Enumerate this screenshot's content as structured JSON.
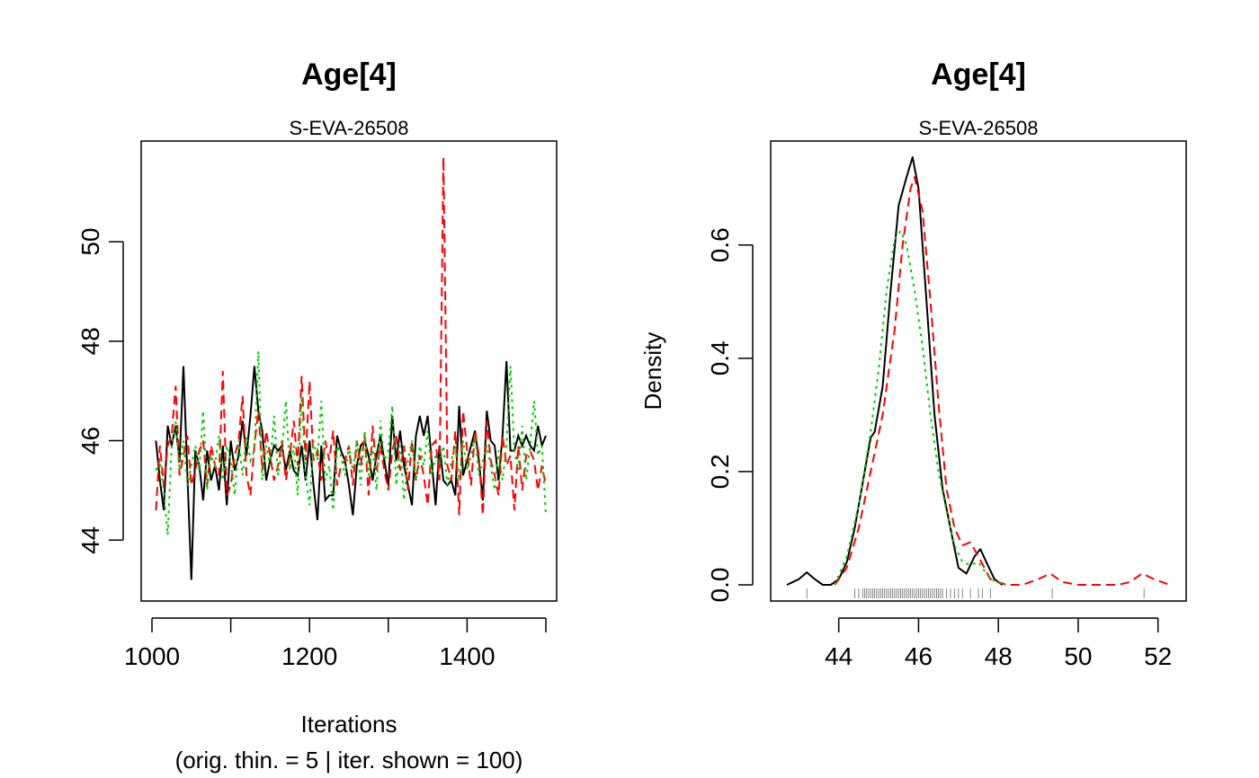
{
  "colors": {
    "chain1": "#000000",
    "chain2": "#ff0000",
    "chain3": "#00cd00",
    "rug": "#000000"
  },
  "chart_data": [
    {
      "type": "line",
      "title": "Age[4]",
      "subtitle": "S-EVA-26508",
      "xlabel": "Iterations",
      "xlabel2": "(orig. thin. = 5 | iter. shown = 100)",
      "ylabel": "",
      "xlim": [
        1000,
        1500
      ],
      "ylim": [
        43.1,
        51.7
      ],
      "xticks": [
        1000,
        1200,
        1400
      ],
      "xtick_minor": [
        1000,
        1100,
        1200,
        1300,
        1400,
        1500
      ],
      "yticks": [
        44,
        46,
        48,
        50
      ],
      "grid": false,
      "x": {
        "start": 1005,
        "step": 5,
        "count": 100
      },
      "series": [
        {
          "values": [
            46.0,
            45.2,
            44.6,
            46.3,
            45.9,
            46.3,
            45.6,
            47.5,
            45.3,
            43.2,
            45.8,
            45.5,
            44.8,
            45.8,
            45.2,
            45.5,
            45.0,
            45.9,
            44.7,
            46.0,
            45.4,
            45.7,
            46.4,
            45.7,
            46.5,
            47.5,
            46.6,
            46.2,
            45.2,
            45.6,
            45.9,
            45.8,
            45.9,
            45.4,
            45.8,
            45.4,
            45.3,
            45.9,
            45.2,
            46.0,
            45.1,
            44.4,
            45.9,
            44.8,
            44.9,
            44.9,
            46.1,
            45.8,
            45.6,
            45.1,
            44.5,
            45.5,
            45.9,
            46.0,
            45.7,
            45.2,
            45.7,
            46.1,
            45.6,
            45.1,
            46.5,
            45.6,
            46.2,
            45.5,
            45.1,
            44.7,
            46.1,
            46.5,
            46.1,
            46.5,
            45.6,
            44.7,
            45.9,
            45.2,
            45.1,
            45.2,
            44.9,
            46.7,
            45.3,
            45.6,
            45.9,
            46.2,
            45.6,
            44.8,
            46.6,
            46.0,
            45.9,
            45.2,
            46.1,
            47.6,
            45.8,
            45.8,
            46.1,
            45.9,
            46.1,
            45.9,
            45.8,
            46.3,
            45.9,
            46.1
          ]
        },
        {
          "values": [
            44.6,
            45.9,
            45.1,
            45.9,
            46.1,
            47.1,
            45.3,
            45.7,
            46.1,
            45.1,
            45.4,
            45.8,
            46.0,
            45.1,
            45.9,
            45.5,
            45.3,
            47.4,
            44.9,
            45.1,
            45.7,
            46.0,
            46.9,
            45.3,
            44.9,
            45.9,
            46.6,
            45.4,
            46.2,
            45.7,
            45.2,
            45.5,
            46.0,
            45.2,
            45.7,
            46.4,
            45.5,
            47.3,
            45.6,
            47.2,
            45.6,
            45.8,
            45.2,
            46.0,
            45.6,
            46.2,
            45.1,
            45.5,
            45.6,
            45.9,
            45.1,
            46.0,
            45.5,
            46.1,
            44.9,
            46.3,
            45.4,
            45.9,
            45.4,
            45.0,
            45.8,
            46.1,
            45.4,
            45.9,
            45.0,
            46.0,
            45.2,
            45.7,
            45.3,
            44.7,
            45.9,
            46.0,
            45.2,
            51.7,
            45.5,
            45.2,
            46.2,
            44.5,
            46.6,
            45.8,
            45.1,
            46.2,
            45.7,
            44.5,
            46.4,
            45.6,
            45.3,
            44.9,
            46.1,
            45.5,
            45.7,
            44.6,
            45.9,
            45.0,
            45.7,
            45.8,
            45.6,
            45.0,
            45.5,
            45.1
          ]
        },
        {
          "values": [
            45.4,
            45.6,
            45.0,
            44.1,
            45.9,
            46.4,
            45.4,
            46.0,
            45.1,
            45.5,
            45.9,
            45.4,
            46.6,
            45.0,
            45.7,
            45.5,
            46.1,
            45.2,
            45.9,
            45.6,
            44.9,
            46.0,
            45.3,
            46.1,
            45.6,
            45.8,
            47.8,
            45.2,
            45.9,
            45.5,
            46.5,
            45.3,
            45.8,
            46.8,
            45.4,
            45.9,
            44.9,
            46.9,
            45.3,
            44.7,
            46.0,
            45.6,
            46.8,
            45.2,
            45.5,
            44.6,
            45.9,
            45.7,
            45.3,
            45.9,
            45.4,
            46.0,
            45.1,
            46.2,
            45.3,
            45.9,
            45.0,
            46.4,
            45.6,
            45.8,
            46.7,
            45.1,
            45.9,
            44.8,
            45.6,
            46.0,
            45.2,
            45.9,
            45.5,
            46.2,
            45.3,
            45.7,
            45.5,
            45.9,
            45.1,
            45.6,
            45.9,
            45.2,
            46.0,
            45.4,
            45.7,
            46.1,
            45.3,
            45.6,
            45.9,
            45.5,
            45.0,
            45.8,
            45.2,
            45.9,
            47.5,
            45.8,
            45.4,
            46.3,
            45.2,
            45.9,
            46.8,
            45.7,
            45.9,
            44.5
          ]
        }
      ]
    },
    {
      "type": "line",
      "title": "Age[4]",
      "subtitle": "S-EVA-26508",
      "xlabel": "",
      "ylabel": "Density",
      "xlim": [
        42.7,
        52.3
      ],
      "ylim": [
        0,
        0.755
      ],
      "xticks": [
        44,
        46,
        48,
        50,
        52
      ],
      "yticks": [
        0.0,
        0.2,
        0.4,
        0.6
      ],
      "ytick_labels": [
        "0.0",
        "0.2",
        "0.4",
        "0.6"
      ],
      "grid": false,
      "series": [
        {
          "x": [
            42.7,
            43.0,
            43.2,
            43.4,
            43.6,
            43.8,
            44.0,
            44.2,
            44.4,
            44.6,
            44.8,
            44.9,
            45.1,
            45.3,
            45.5,
            45.7,
            45.85,
            46.0,
            46.2,
            46.4,
            46.6,
            46.8,
            47.0,
            47.2,
            47.4,
            47.55,
            47.7,
            47.9,
            48.1
          ],
          "y": [
            0.0,
            0.01,
            0.022,
            0.01,
            0.0,
            0.0,
            0.01,
            0.04,
            0.1,
            0.18,
            0.26,
            0.27,
            0.35,
            0.52,
            0.67,
            0.72,
            0.755,
            0.7,
            0.5,
            0.3,
            0.17,
            0.1,
            0.03,
            0.02,
            0.05,
            0.063,
            0.04,
            0.01,
            0.0
          ]
        },
        {
          "x": [
            43.9,
            44.2,
            44.5,
            44.8,
            45.1,
            45.4,
            45.6,
            45.8,
            45.9,
            46.1,
            46.3,
            46.5,
            46.7,
            46.9,
            47.1,
            47.3,
            47.5,
            47.8,
            48.2,
            48.6,
            49.0,
            49.3,
            49.6,
            50.0,
            50.5,
            51.0,
            51.3,
            51.6,
            51.9,
            52.3
          ],
          "y": [
            0.0,
            0.03,
            0.1,
            0.2,
            0.3,
            0.45,
            0.6,
            0.7,
            0.72,
            0.66,
            0.5,
            0.32,
            0.17,
            0.1,
            0.07,
            0.075,
            0.05,
            0.01,
            0.0,
            0.0,
            0.01,
            0.02,
            0.005,
            0.0,
            0.0,
            0.0,
            0.005,
            0.02,
            0.01,
            0.0
          ]
        },
        {
          "x": [
            43.9,
            44.2,
            44.5,
            44.8,
            45.0,
            45.2,
            45.4,
            45.55,
            45.7,
            45.9,
            46.1,
            46.3,
            46.5,
            46.7,
            46.9,
            47.1,
            47.3,
            47.5,
            47.8,
            48.2
          ],
          "y": [
            0.0,
            0.05,
            0.14,
            0.27,
            0.38,
            0.52,
            0.61,
            0.625,
            0.6,
            0.52,
            0.42,
            0.3,
            0.2,
            0.13,
            0.07,
            0.04,
            0.035,
            0.04,
            0.01,
            0.0
          ]
        }
      ],
      "rug": [
        44.4,
        44.5,
        44.6,
        44.65,
        44.7,
        44.75,
        44.8,
        44.85,
        44.9,
        44.95,
        45.0,
        45.05,
        45.1,
        45.15,
        45.2,
        45.25,
        45.3,
        45.35,
        45.4,
        45.45,
        45.5,
        45.55,
        45.6,
        45.65,
        45.7,
        45.75,
        45.8,
        45.85,
        45.9,
        45.95,
        46.0,
        46.05,
        46.1,
        46.15,
        46.2,
        46.25,
        46.3,
        46.35,
        46.4,
        46.45,
        46.5,
        46.55,
        46.6,
        46.7,
        46.8,
        46.9,
        47.0,
        47.1,
        47.3,
        47.5,
        47.6,
        47.8,
        49.35,
        51.65,
        43.2
      ]
    }
  ]
}
